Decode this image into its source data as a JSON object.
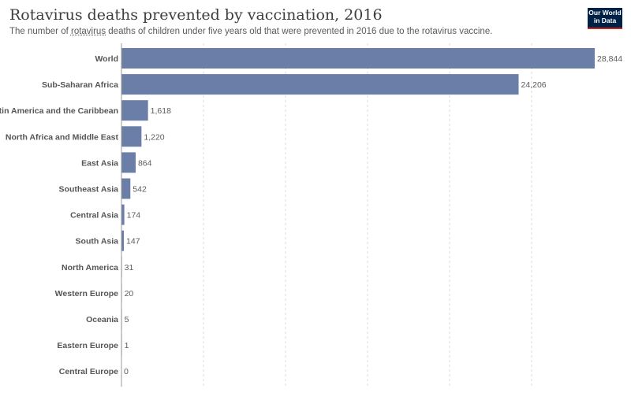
{
  "header": {
    "title": "Rotavirus deaths prevented by vaccination, 2016",
    "subtitle_before": "The number of ",
    "subtitle_link": "rotavirus",
    "subtitle_after": " deaths of children under five years old that were prevented in 2016 due to the rotavirus vaccine.",
    "logo_line1": "Our World",
    "logo_line2": "in Data"
  },
  "colors": {
    "bar": "#6b7ea8",
    "logo_bg": "#002147",
    "logo_accent": "#ce261e"
  },
  "chart_data": {
    "type": "bar",
    "orientation": "horizontal",
    "categories": [
      "World",
      "Sub-Saharan Africa",
      "Latin America and the Caribbean",
      "North Africa and Middle East",
      "East Asia",
      "Southeast Asia",
      "Central Asia",
      "South Asia",
      "North America",
      "Western Europe",
      "Oceania",
      "Eastern Europe",
      "Central Europe"
    ],
    "values": [
      28844,
      24206,
      1618,
      1220,
      864,
      542,
      174,
      147,
      31,
      20,
      5,
      1,
      0
    ],
    "value_labels": [
      "28,844",
      "24,206",
      "1,618",
      "1,220",
      "864",
      "542",
      "174",
      "147",
      "31",
      "20",
      "5",
      "1",
      "0"
    ],
    "xlim": [
      0,
      30000
    ],
    "grid": true
  }
}
